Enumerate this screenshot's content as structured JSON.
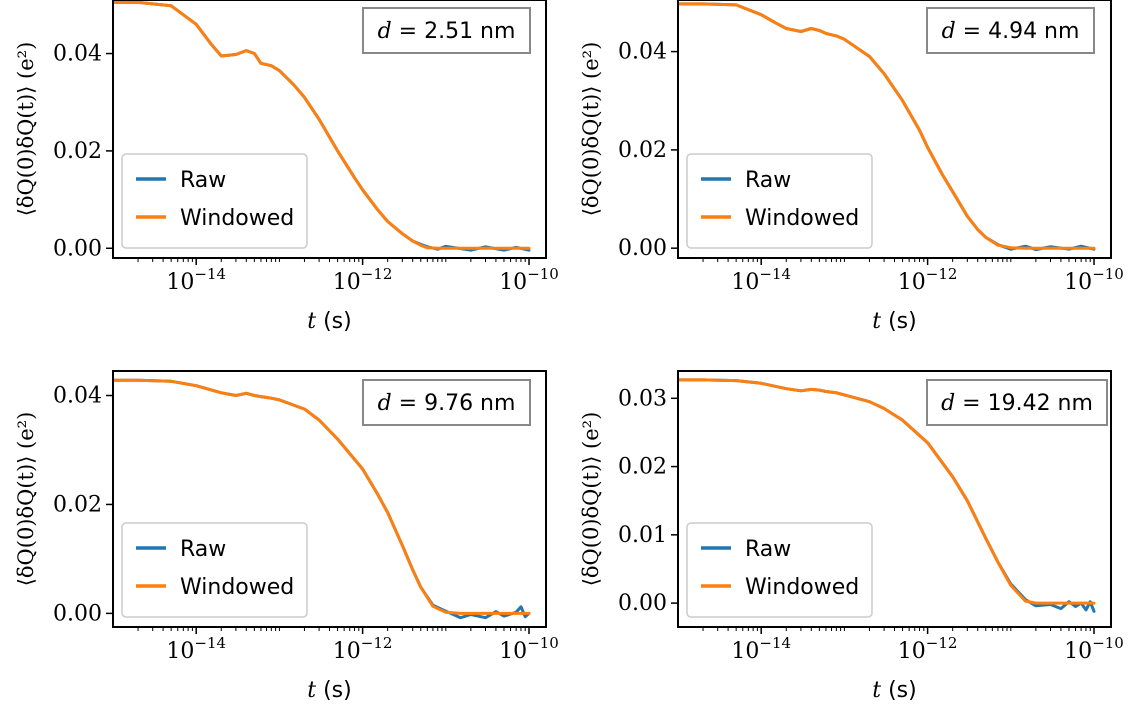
{
  "colors": {
    "raw": "#1f77b4",
    "windowed": "#ff7f0e",
    "axes": "#000000",
    "legend_border": "#cccccc",
    "annotation_border": "#888888"
  },
  "chart_data": [
    {
      "type": "line",
      "annotation_var": "d",
      "annotation_eq": " = ",
      "annotation_value": "2.51 nm",
      "ylabel": "⟨δQ(0)δQ(t)⟩ (e²)",
      "xlabel_var": "t",
      "xlabel_unit": " (s)",
      "xscale": "log",
      "xlim": [
        1e-15,
        1.6e-10
      ],
      "ylim": [
        -0.002,
        0.051
      ],
      "xticks": [
        {
          "base": "10",
          "exp": "−14",
          "value": 1e-14
        },
        {
          "base": "10",
          "exp": "−12",
          "value": 1e-12
        },
        {
          "base": "10",
          "exp": "−10",
          "value": 1e-10
        }
      ],
      "yticks": [
        {
          "label": "0.00",
          "value": 0.0
        },
        {
          "label": "0.02",
          "value": 0.02
        },
        {
          "label": "0.04",
          "value": 0.04
        }
      ],
      "legend_position": "lower left",
      "series": [
        {
          "name": "Raw",
          "x": [
            1e-15,
            2e-15,
            5e-15,
            1e-14,
            1.5e-14,
            2e-14,
            3e-14,
            4e-14,
            5e-14,
            6e-14,
            8e-14,
            1e-13,
            1.5e-13,
            2e-13,
            3e-13,
            5e-13,
            8e-13,
            1e-12,
            1.5e-12,
            2e-12,
            3e-12,
            4e-12,
            5e-12,
            6e-12,
            8e-12,
            1e-11,
            2e-11,
            3e-11,
            5e-11,
            7e-11,
            1e-10
          ],
          "y": [
            0.0505,
            0.0505,
            0.0498,
            0.046,
            0.042,
            0.0395,
            0.0398,
            0.0406,
            0.04,
            0.038,
            0.0375,
            0.0365,
            0.0335,
            0.031,
            0.0265,
            0.02,
            0.0145,
            0.012,
            0.008,
            0.0055,
            0.003,
            0.0015,
            0.0008,
            0.0003,
            -0.0002,
            0.0004,
            -0.0004,
            0.0003,
            -0.0004,
            0.0002,
            -0.0004
          ]
        },
        {
          "name": "Windowed",
          "x": [
            1e-15,
            2e-15,
            5e-15,
            1e-14,
            1.5e-14,
            2e-14,
            3e-14,
            4e-14,
            5e-14,
            6e-14,
            8e-14,
            1e-13,
            1.5e-13,
            2e-13,
            3e-13,
            5e-13,
            8e-13,
            1e-12,
            1.5e-12,
            2e-12,
            3e-12,
            4e-12,
            5e-12,
            6e-12,
            8e-12,
            1e-11,
            2e-11,
            3e-11,
            5e-11,
            7e-11,
            1e-10
          ],
          "y": [
            0.0505,
            0.0505,
            0.0498,
            0.046,
            0.042,
            0.0395,
            0.0398,
            0.0406,
            0.04,
            0.038,
            0.0375,
            0.0365,
            0.0335,
            0.031,
            0.0265,
            0.02,
            0.0145,
            0.012,
            0.008,
            0.0055,
            0.003,
            0.0015,
            0.0006,
            0.0001,
            0.0,
            0.0,
            0.0,
            0.0,
            0.0,
            0.0,
            0.0
          ]
        }
      ]
    },
    {
      "type": "line",
      "annotation_var": "d",
      "annotation_eq": " = ",
      "annotation_value": "4.94 nm",
      "ylabel": "⟨δQ(0)δQ(t)⟩ (e²)",
      "xlabel_var": "t",
      "xlabel_unit": " (s)",
      "xscale": "log",
      "xlim": [
        1e-15,
        1.6e-10
      ],
      "ylim": [
        -0.002,
        0.0505
      ],
      "xticks": [
        {
          "base": "10",
          "exp": "−14",
          "value": 1e-14
        },
        {
          "base": "10",
          "exp": "−12",
          "value": 1e-12
        },
        {
          "base": "10",
          "exp": "−10",
          "value": 1e-10
        }
      ],
      "yticks": [
        {
          "label": "0.00",
          "value": 0.0
        },
        {
          "label": "0.02",
          "value": 0.02
        },
        {
          "label": "0.04",
          "value": 0.04
        }
      ],
      "legend_position": "lower left",
      "series": [
        {
          "name": "Raw",
          "x": [
            1e-15,
            2e-15,
            5e-15,
            1e-14,
            1.5e-14,
            2e-14,
            3e-14,
            4e-14,
            5e-14,
            6e-14,
            8e-14,
            1e-13,
            2e-13,
            3e-13,
            5e-13,
            8e-13,
            1e-12,
            1.5e-12,
            2e-12,
            3e-12,
            4e-12,
            5e-12,
            7e-12,
            1e-11,
            1.5e-11,
            2e-11,
            3e-11,
            5e-11,
            7e-11,
            1e-10
          ],
          "y": [
            0.0497,
            0.0497,
            0.0495,
            0.0475,
            0.0458,
            0.0447,
            0.0441,
            0.0447,
            0.0443,
            0.0437,
            0.0432,
            0.0425,
            0.039,
            0.0355,
            0.03,
            0.024,
            0.0205,
            0.015,
            0.0115,
            0.0065,
            0.0038,
            0.0022,
            0.0007,
            -0.0002,
            0.0004,
            -0.0003,
            0.0003,
            -0.0002,
            0.0004,
            -0.0002
          ]
        },
        {
          "name": "Windowed",
          "x": [
            1e-15,
            2e-15,
            5e-15,
            1e-14,
            1.5e-14,
            2e-14,
            3e-14,
            4e-14,
            5e-14,
            6e-14,
            8e-14,
            1e-13,
            2e-13,
            3e-13,
            5e-13,
            8e-13,
            1e-12,
            1.5e-12,
            2e-12,
            3e-12,
            4e-12,
            5e-12,
            7e-12,
            1e-11,
            1.5e-11,
            2e-11,
            3e-11,
            5e-11,
            7e-11,
            1e-10
          ],
          "y": [
            0.0497,
            0.0497,
            0.0495,
            0.0475,
            0.0458,
            0.0447,
            0.0441,
            0.0447,
            0.0443,
            0.0437,
            0.0432,
            0.0425,
            0.039,
            0.0355,
            0.03,
            0.024,
            0.0205,
            0.015,
            0.0115,
            0.0065,
            0.0038,
            0.0022,
            0.0006,
            0.0001,
            0.0,
            0.0,
            0.0,
            0.0,
            0.0,
            0.0
          ]
        }
      ]
    },
    {
      "type": "line",
      "annotation_var": "d",
      "annotation_eq": " = ",
      "annotation_value": "9.76 nm",
      "ylabel": "⟨δQ(0)δQ(t)⟩ (e²)",
      "xlabel_var": "t",
      "xlabel_unit": " (s)",
      "xscale": "log",
      "xlim": [
        1e-15,
        1.6e-10
      ],
      "ylim": [
        -0.0025,
        0.0445
      ],
      "xticks": [
        {
          "base": "10",
          "exp": "−14",
          "value": 1e-14
        },
        {
          "base": "10",
          "exp": "−12",
          "value": 1e-12
        },
        {
          "base": "10",
          "exp": "−10",
          "value": 1e-10
        }
      ],
      "yticks": [
        {
          "label": "0.00",
          "value": 0.0
        },
        {
          "label": "0.02",
          "value": 0.02
        },
        {
          "label": "0.04",
          "value": 0.04
        }
      ],
      "legend_position": "lower left",
      "series": [
        {
          "name": "Raw",
          "x": [
            1e-15,
            2e-15,
            5e-15,
            1e-14,
            2e-14,
            3e-14,
            4e-14,
            5e-14,
            6e-14,
            8e-14,
            1e-13,
            2e-13,
            3e-13,
            5e-13,
            1e-12,
            1.5e-12,
            2e-12,
            3e-12,
            4e-12,
            5e-12,
            7e-12,
            1e-11,
            1.5e-11,
            2e-11,
            3e-11,
            4e-11,
            5e-11,
            7e-11,
            8e-11,
            9e-11,
            1e-10
          ],
          "y": [
            0.0428,
            0.0428,
            0.0426,
            0.0418,
            0.0405,
            0.04,
            0.0404,
            0.04,
            0.0398,
            0.0395,
            0.0392,
            0.0375,
            0.0355,
            0.032,
            0.0265,
            0.022,
            0.0185,
            0.0125,
            0.008,
            0.0048,
            0.0015,
            0.0004,
            -0.0008,
            -0.0002,
            -0.0008,
            0.0003,
            -0.0005,
            0.0002,
            0.0012,
            -0.0006,
            0.0
          ]
        },
        {
          "name": "Windowed",
          "x": [
            1e-15,
            2e-15,
            5e-15,
            1e-14,
            2e-14,
            3e-14,
            4e-14,
            5e-14,
            6e-14,
            8e-14,
            1e-13,
            2e-13,
            3e-13,
            5e-13,
            1e-12,
            1.5e-12,
            2e-12,
            3e-12,
            4e-12,
            5e-12,
            7e-12,
            1e-11,
            1.5e-11,
            2e-11,
            3e-11,
            4e-11,
            5e-11,
            7e-11,
            8e-11,
            9e-11,
            1e-10
          ],
          "y": [
            0.0428,
            0.0428,
            0.0426,
            0.0418,
            0.0405,
            0.04,
            0.0404,
            0.04,
            0.0398,
            0.0395,
            0.0392,
            0.0375,
            0.0355,
            0.032,
            0.0265,
            0.022,
            0.0185,
            0.0125,
            0.008,
            0.0048,
            0.0013,
            0.0002,
            0.0,
            0.0,
            0.0,
            0.0,
            0.0,
            0.0,
            0.0,
            0.0,
            0.0
          ]
        }
      ]
    },
    {
      "type": "line",
      "annotation_var": "d",
      "annotation_eq": " = ",
      "annotation_value": "19.42 nm",
      "ylabel": "⟨δQ(0)δQ(t)⟩ (e²)",
      "xlabel_var": "t",
      "xlabel_unit": " (s)",
      "xscale": "log",
      "xlim": [
        1e-15,
        1.6e-10
      ],
      "ylim": [
        -0.0035,
        0.034
      ],
      "xticks": [
        {
          "base": "10",
          "exp": "−14",
          "value": 1e-14
        },
        {
          "base": "10",
          "exp": "−12",
          "value": 1e-12
        },
        {
          "base": "10",
          "exp": "−10",
          "value": 1e-10
        }
      ],
      "yticks": [
        {
          "label": "0.00",
          "value": 0.0
        },
        {
          "label": "0.01",
          "value": 0.01
        },
        {
          "label": "0.02",
          "value": 0.02
        },
        {
          "label": "0.03",
          "value": 0.03
        }
      ],
      "legend_position": "lower left",
      "series": [
        {
          "name": "Raw",
          "x": [
            1e-15,
            2e-15,
            5e-15,
            1e-14,
            2e-14,
            3e-14,
            4e-14,
            5e-14,
            6e-14,
            8e-14,
            1e-13,
            2e-13,
            3e-13,
            5e-13,
            1e-12,
            2e-12,
            3e-12,
            5e-12,
            7e-12,
            1e-11,
            1.5e-11,
            2e-11,
            3e-11,
            4e-11,
            5e-11,
            6e-11,
            7e-11,
            8e-11,
            9e-11,
            1e-10
          ],
          "y": [
            0.0327,
            0.0327,
            0.0326,
            0.0322,
            0.0314,
            0.0311,
            0.0313,
            0.0312,
            0.031,
            0.0308,
            0.0305,
            0.0295,
            0.0285,
            0.0268,
            0.0235,
            0.0185,
            0.015,
            0.0095,
            0.006,
            0.0028,
            0.0005,
            -0.0004,
            -0.0002,
            -0.0008,
            0.0002,
            -0.0005,
            0.0,
            -0.001,
            0.0002,
            -0.0012
          ]
        },
        {
          "name": "Windowed",
          "x": [
            1e-15,
            2e-15,
            5e-15,
            1e-14,
            2e-14,
            3e-14,
            4e-14,
            5e-14,
            6e-14,
            8e-14,
            1e-13,
            2e-13,
            3e-13,
            5e-13,
            1e-12,
            2e-12,
            3e-12,
            5e-12,
            7e-12,
            1e-11,
            1.5e-11,
            2e-11,
            3e-11,
            4e-11,
            5e-11,
            6e-11,
            7e-11,
            8e-11,
            9e-11,
            1e-10
          ],
          "y": [
            0.0327,
            0.0327,
            0.0326,
            0.0322,
            0.0314,
            0.0311,
            0.0313,
            0.0312,
            0.031,
            0.0308,
            0.0305,
            0.0295,
            0.0285,
            0.0268,
            0.0235,
            0.0185,
            0.015,
            0.0095,
            0.006,
            0.0026,
            0.0003,
            0.0,
            0.0,
            0.0,
            0.0,
            0.0,
            0.0,
            0.0,
            0.0,
            0.0
          ]
        }
      ]
    }
  ]
}
